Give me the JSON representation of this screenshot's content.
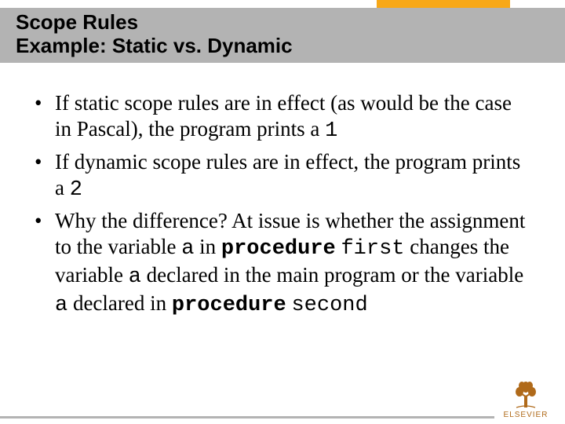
{
  "colors": {
    "accent": "#f7a818",
    "title_band": "#b3b3b3",
    "footer_line": "#b3b3b3",
    "text": "#000000",
    "background": "#ffffff",
    "publisher": "#b06a1a"
  },
  "title": {
    "line1": "Scope Rules",
    "line2": "Example: Static vs. Dynamic",
    "font_family": "Arial",
    "font_weight": 900,
    "font_size_pt": 20
  },
  "bullets": [
    {
      "segments": [
        {
          "t": "If static scope rules are in effect (as would be the case in Pascal), the program prints a ",
          "cls": ""
        },
        {
          "t": "1",
          "cls": "mono"
        }
      ]
    },
    {
      "segments": [
        {
          "t": "If dynamic scope rules are in effect, the program prints a ",
          "cls": ""
        },
        {
          "t": "2",
          "cls": "mono"
        }
      ]
    },
    {
      "segments": [
        {
          "t": "Why the difference?  At issue is whether the assignment to the variable ",
          "cls": ""
        },
        {
          "t": "a",
          "cls": "mono"
        },
        {
          "t": " in ",
          "cls": ""
        },
        {
          "t": "procedure",
          "cls": "mono-bold"
        },
        {
          "t": " ",
          "cls": ""
        },
        {
          "t": "first",
          "cls": "mono"
        },
        {
          "t": " changes the variable ",
          "cls": ""
        },
        {
          "t": "a",
          "cls": "mono"
        },
        {
          "t": " declared in the main program or the variable ",
          "cls": ""
        },
        {
          "t": "a",
          "cls": "mono"
        },
        {
          "t": " declared in ",
          "cls": ""
        },
        {
          "t": "procedure",
          "cls": "mono-bold"
        },
        {
          "t": " ",
          "cls": ""
        },
        {
          "t": "second",
          "cls": "mono"
        }
      ]
    }
  ],
  "body_style": {
    "font_family": "Times New Roman",
    "font_size_pt": 20,
    "line_height": 1.22
  },
  "publisher": {
    "name": "ELSEVIER",
    "color": "#b06a1a"
  }
}
